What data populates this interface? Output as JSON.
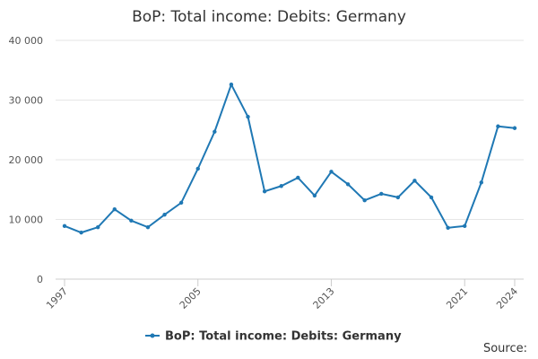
{
  "chart_data": {
    "type": "line",
    "title": "BoP: Total income: Debits: Germany",
    "x": [
      1997,
      1998,
      1999,
      2000,
      2001,
      2002,
      2003,
      2004,
      2005,
      2006,
      2007,
      2008,
      2009,
      2010,
      2011,
      2012,
      2013,
      2014,
      2015,
      2016,
      2017,
      2018,
      2019,
      2020,
      2021,
      2022,
      2023,
      2024
    ],
    "series": [
      {
        "name": "BoP: Total income: Debits: Germany",
        "color": "#1f78b4",
        "values": [
          8900,
          7800,
          8700,
          11700,
          9800,
          8700,
          10800,
          12800,
          18500,
          24700,
          32600,
          27200,
          14700,
          15600,
          17000,
          14000,
          18000,
          15900,
          13200,
          14300,
          13700,
          16500,
          13700,
          8600,
          8900,
          16200,
          25600,
          25300
        ]
      }
    ],
    "xlim": [
      1997,
      2024
    ],
    "xticks": [
      1997,
      2005,
      2013,
      2021,
      2024
    ],
    "ylim": [
      0,
      40000
    ],
    "yticks": [
      0,
      {
        "value": 10000,
        "label": "10 000"
      },
      {
        "value": 20000,
        "label": "20 000"
      },
      {
        "value": 30000,
        "label": "30 000"
      },
      {
        "value": 40000,
        "label": "40 000"
      }
    ],
    "grid": true,
    "legend": "bottom",
    "source": "Source:"
  }
}
